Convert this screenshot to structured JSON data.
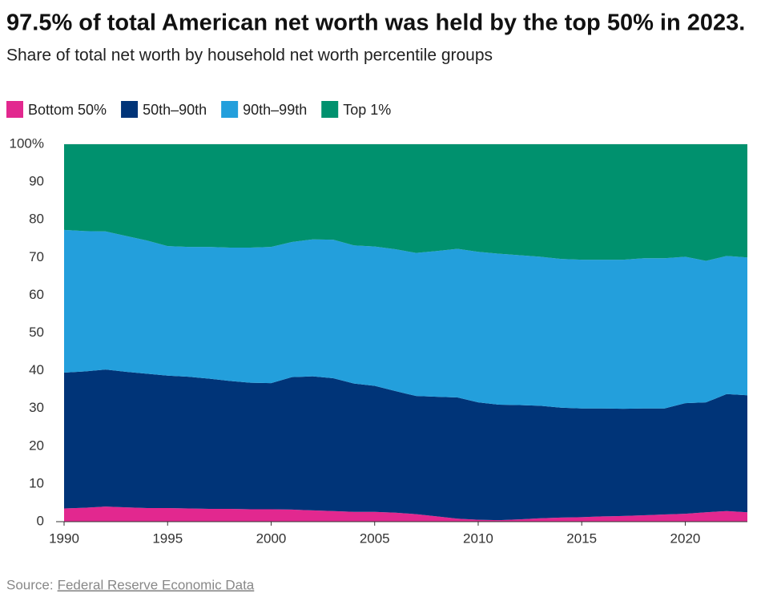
{
  "chart_data": {
    "type": "stacked-area",
    "title": "97.5% of total American net worth was held by the top 50% in 2023.",
    "subtitle": "Share of total net worth by household net worth percentile groups",
    "x": [
      1990,
      1991,
      1992,
      1993,
      1994,
      1995,
      1996,
      1997,
      1998,
      1999,
      2000,
      2001,
      2002,
      2003,
      2004,
      2005,
      2006,
      2007,
      2008,
      2009,
      2010,
      2011,
      2012,
      2013,
      2014,
      2015,
      2016,
      2017,
      2018,
      2019,
      2020,
      2021,
      2022,
      2023
    ],
    "xlim": [
      1990,
      2023
    ],
    "xticks": [
      1990,
      1995,
      2000,
      2005,
      2010,
      2015,
      2020
    ],
    "ylim": [
      0,
      100
    ],
    "yticks": [
      0,
      10,
      20,
      30,
      40,
      50,
      60,
      70,
      80,
      90,
      {
        "value": 100,
        "label": "100%"
      }
    ],
    "grid": true,
    "legend": "top-left",
    "series": [
      {
        "name": "Bottom 50%",
        "color": "#e2288f",
        "values": [
          3.5,
          3.7,
          4.0,
          3.8,
          3.6,
          3.6,
          3.5,
          3.4,
          3.4,
          3.3,
          3.3,
          3.2,
          3.0,
          2.8,
          2.6,
          2.6,
          2.4,
          2.0,
          1.4,
          0.8,
          0.5,
          0.4,
          0.6,
          0.9,
          1.1,
          1.2,
          1.4,
          1.5,
          1.7,
          1.9,
          2.1,
          2.5,
          2.8,
          2.5
        ]
      },
      {
        "name": "50th–90th",
        "color": "#003478",
        "values": [
          36.0,
          36.1,
          36.3,
          35.9,
          35.6,
          35.1,
          34.9,
          34.5,
          33.9,
          33.5,
          33.4,
          35.1,
          35.5,
          35.2,
          34.0,
          33.4,
          32.2,
          31.3,
          31.7,
          32.1,
          31.1,
          30.6,
          30.3,
          29.8,
          29.1,
          28.8,
          28.6,
          28.4,
          28.3,
          28.1,
          29.3,
          29.1,
          31.0,
          31.0
        ]
      },
      {
        "name": "90th–99th",
        "color": "#239fdc",
        "values": [
          37.8,
          37.2,
          36.6,
          36.0,
          35.3,
          34.3,
          34.4,
          34.9,
          35.3,
          35.8,
          36.1,
          35.8,
          36.3,
          36.7,
          36.6,
          36.9,
          37.6,
          37.9,
          38.6,
          39.4,
          39.9,
          40.0,
          39.7,
          39.5,
          39.4,
          39.4,
          39.4,
          39.5,
          39.8,
          39.8,
          38.8,
          37.5,
          36.6,
          36.5
        ]
      },
      {
        "name": "Top 1%",
        "color": "#00916e",
        "values": [
          22.7,
          23.0,
          23.1,
          24.3,
          25.5,
          27.0,
          27.2,
          27.2,
          27.4,
          27.4,
          27.2,
          25.9,
          25.2,
          25.3,
          26.8,
          27.1,
          27.8,
          28.8,
          28.3,
          27.7,
          28.5,
          29.0,
          29.4,
          29.8,
          30.4,
          30.6,
          30.6,
          30.6,
          30.2,
          30.2,
          29.8,
          30.9,
          29.6,
          30.0
        ]
      }
    ]
  },
  "source": {
    "label": "Source:",
    "link": "Federal Reserve Economic Data"
  }
}
